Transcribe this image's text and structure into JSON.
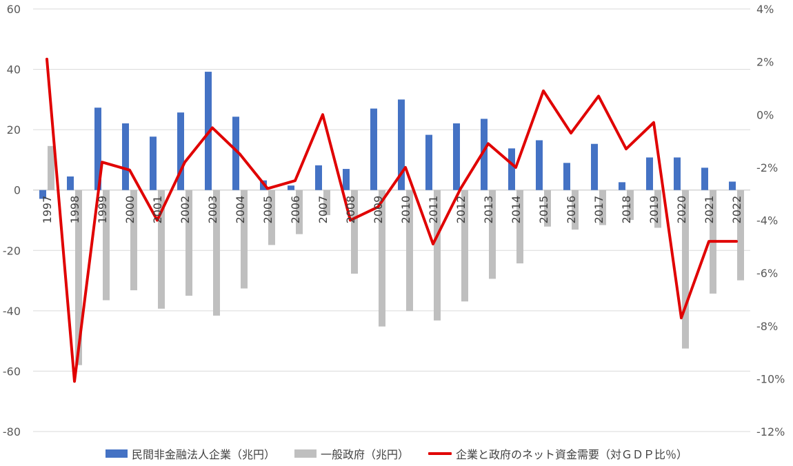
{
  "chart_data": {
    "type": "bar",
    "categories": [
      "1997",
      "1998",
      "1999",
      "2000",
      "2001",
      "2002",
      "2003",
      "2004",
      "2005",
      "2006",
      "2007",
      "2008",
      "2009",
      "2010",
      "2011",
      "2012",
      "2013",
      "2014",
      "2015",
      "2016",
      "2017",
      "2018",
      "2019",
      "2020",
      "2021",
      "2022"
    ],
    "series": [
      {
        "name": "民間非金融法人企業（兆円）",
        "type": "bar",
        "axis": "left",
        "color": "#4472C4",
        "values": [
          -2.9,
          4.5,
          27.3,
          22.1,
          17.7,
          25.7,
          39.2,
          24.3,
          3.2,
          1.5,
          8.2,
          7.0,
          27.0,
          30.0,
          18.3,
          22.1,
          23.6,
          13.8,
          16.5,
          9.0,
          15.3,
          2.6,
          10.8,
          10.8,
          7.4,
          2.8
        ]
      },
      {
        "name": "一般政府（兆円）",
        "type": "bar",
        "axis": "left",
        "color": "#BFBFBF",
        "values": [
          14.6,
          -58.0,
          -36.5,
          -33.2,
          -39.3,
          -35.0,
          -41.6,
          -32.6,
          -18.2,
          -14.6,
          -8.3,
          -27.7,
          -45.2,
          -40.1,
          -43.2,
          -36.9,
          -29.4,
          -24.3,
          -12.1,
          -13.1,
          -11.6,
          -9.9,
          -12.5,
          -52.5,
          -34.3,
          -29.9
        ]
      },
      {
        "name": "企業と政府のネット資金需要（対ＧＤＰ比％）",
        "type": "line",
        "axis": "right",
        "color": "#E00000",
        "values": [
          2.1,
          -10.1,
          -1.8,
          -2.1,
          -4.0,
          -1.8,
          -0.5,
          -1.5,
          -2.8,
          -2.5,
          0.0,
          -4.0,
          -3.5,
          -2.0,
          -4.9,
          -2.8,
          -1.1,
          -2.0,
          0.9,
          -0.7,
          0.7,
          -1.3,
          -0.3,
          -7.7,
          -4.8,
          -4.8
        ]
      }
    ],
    "y_left": {
      "min": -80,
      "max": 60,
      "ticks": [
        60,
        40,
        20,
        0,
        -20,
        -40,
        -60,
        -80
      ],
      "tick_labels": [
        "60",
        "40",
        "20",
        "0",
        "-20",
        "-40",
        "-60",
        "-80"
      ]
    },
    "y_right": {
      "min": -12,
      "max": 4,
      "ticks": [
        4,
        2,
        0,
        -2,
        -4,
        -6,
        -8,
        -10,
        -12
      ],
      "tick_labels": [
        "4%",
        "2%",
        "0%",
        "-2%",
        "-4%",
        "-6%",
        "-8%",
        "-10%",
        "-12%"
      ]
    },
    "grid": true,
    "legend_position": "bottom",
    "title": "",
    "xlabel": "",
    "ylabel": ""
  }
}
